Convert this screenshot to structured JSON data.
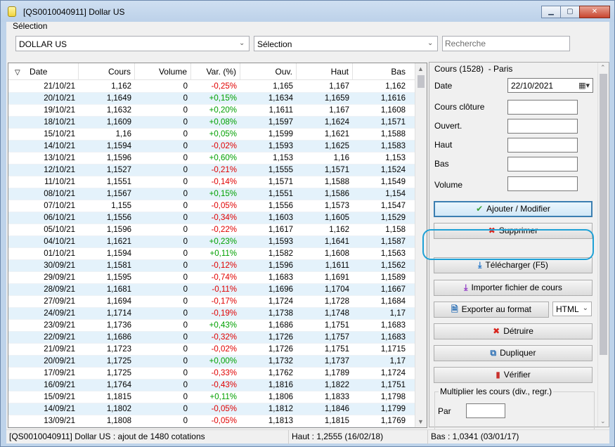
{
  "window": {
    "title": "[QS0010040911] Dollar US",
    "minimize_glyph": "▁",
    "maximize_glyph": "▢",
    "close_glyph": "✕"
  },
  "toolbar": {
    "selection_label": "Sélection",
    "asset_combo_value": "DOLLAR US",
    "selection_combo_value": "Sélection",
    "search_placeholder": "Recherche"
  },
  "table": {
    "sort_glyph": "▽",
    "columns": [
      "Date",
      "Cours",
      "Volume",
      "Var. (%)",
      "Ouv.",
      "Haut",
      "Bas"
    ],
    "rows": [
      [
        "21/10/21",
        "1,162",
        "0",
        "-0,25%",
        "1,165",
        "1,167",
        "1,162"
      ],
      [
        "20/10/21",
        "1,1649",
        "0",
        "+0,15%",
        "1,1634",
        "1,1659",
        "1,1616"
      ],
      [
        "19/10/21",
        "1,1632",
        "0",
        "+0,20%",
        "1,1611",
        "1,167",
        "1,1608"
      ],
      [
        "18/10/21",
        "1,1609",
        "0",
        "+0,08%",
        "1,1597",
        "1,1624",
        "1,1571"
      ],
      [
        "15/10/21",
        "1,16",
        "0",
        "+0,05%",
        "1,1599",
        "1,1621",
        "1,1588"
      ],
      [
        "14/10/21",
        "1,1594",
        "0",
        "-0,02%",
        "1,1593",
        "1,1625",
        "1,1583"
      ],
      [
        "13/10/21",
        "1,1596",
        "0",
        "+0,60%",
        "1,153",
        "1,16",
        "1,153"
      ],
      [
        "12/10/21",
        "1,1527",
        "0",
        "-0,21%",
        "1,1555",
        "1,1571",
        "1,1524"
      ],
      [
        "11/10/21",
        "1,1551",
        "0",
        "-0,14%",
        "1,1571",
        "1,1588",
        "1,1549"
      ],
      [
        "08/10/21",
        "1,1567",
        "0",
        "+0,15%",
        "1,1551",
        "1,1586",
        "1,154"
      ],
      [
        "07/10/21",
        "1,155",
        "0",
        "-0,05%",
        "1,1556",
        "1,1573",
        "1,1547"
      ],
      [
        "06/10/21",
        "1,1556",
        "0",
        "-0,34%",
        "1,1603",
        "1,1605",
        "1,1529"
      ],
      [
        "05/10/21",
        "1,1596",
        "0",
        "-0,22%",
        "1,1617",
        "1,162",
        "1,158"
      ],
      [
        "04/10/21",
        "1,1621",
        "0",
        "+0,23%",
        "1,1593",
        "1,1641",
        "1,1587"
      ],
      [
        "01/10/21",
        "1,1594",
        "0",
        "+0,11%",
        "1,1582",
        "1,1608",
        "1,1563"
      ],
      [
        "30/09/21",
        "1,1581",
        "0",
        "-0,12%",
        "1,1596",
        "1,1611",
        "1,1562"
      ],
      [
        "29/09/21",
        "1,1595",
        "0",
        "-0,74%",
        "1,1683",
        "1,1691",
        "1,1589"
      ],
      [
        "28/09/21",
        "1,1681",
        "0",
        "-0,11%",
        "1,1696",
        "1,1704",
        "1,1667"
      ],
      [
        "27/09/21",
        "1,1694",
        "0",
        "-0,17%",
        "1,1724",
        "1,1728",
        "1,1684"
      ],
      [
        "24/09/21",
        "1,1714",
        "0",
        "-0,19%",
        "1,1738",
        "1,1748",
        "1,17"
      ],
      [
        "23/09/21",
        "1,1736",
        "0",
        "+0,43%",
        "1,1686",
        "1,1751",
        "1,1683"
      ],
      [
        "22/09/21",
        "1,1686",
        "0",
        "-0,32%",
        "1,1726",
        "1,1757",
        "1,1683"
      ],
      [
        "21/09/21",
        "1,1723",
        "0",
        "-0,02%",
        "1,1726",
        "1,1751",
        "1,1715"
      ],
      [
        "20/09/21",
        "1,1725",
        "0",
        "+0,00%",
        "1,1732",
        "1,1737",
        "1,17"
      ],
      [
        "17/09/21",
        "1,1725",
        "0",
        "-0,33%",
        "1,1762",
        "1,1789",
        "1,1724"
      ],
      [
        "16/09/21",
        "1,1764",
        "0",
        "-0,43%",
        "1,1816",
        "1,1822",
        "1,1751"
      ],
      [
        "15/09/21",
        "1,1815",
        "0",
        "+0,11%",
        "1,1806",
        "1,1833",
        "1,1798"
      ],
      [
        "14/09/21",
        "1,1802",
        "0",
        "-0,05%",
        "1,1812",
        "1,1846",
        "1,1799"
      ],
      [
        "13/09/21",
        "1,1808",
        "0",
        "-0,05%",
        "1,1813",
        "1,1815",
        "1,1769"
      ]
    ]
  },
  "panel": {
    "header": "Cours (1528)",
    "location": "Paris",
    "date_label": "Date",
    "date_value": "22/10/2021",
    "close_label": "Cours clôture",
    "open_label": "Ouvert.",
    "high_label": "Haut",
    "low_label": "Bas",
    "volume_label": "Volume",
    "add_modify_label": "Ajouter / Modifier",
    "delete_label": "Supprimer",
    "download_label": "Télécharger (F5)",
    "import_label": "Importer fichier de cours",
    "export_label": "Exporter au format",
    "export_format": "HTML",
    "destroy_label": "Détruire",
    "duplicate_label": "Dupliquer",
    "verify_label": "Vérifier",
    "multiply_group_title": "Multiplier les cours (div., regr.)",
    "par_label": "Par"
  },
  "status": {
    "left": "[QS0010040911] Dollar US : ajout de 1480 cotations",
    "high": "Haut : 1,2555 (16/02/18)",
    "low": "Bas : 1,0341 (03/01/17)"
  },
  "colors": {
    "positive": "#00a000",
    "negative": "#e00000",
    "row_alt": "#e4f2fb",
    "highlight": "#1ea1d6"
  }
}
